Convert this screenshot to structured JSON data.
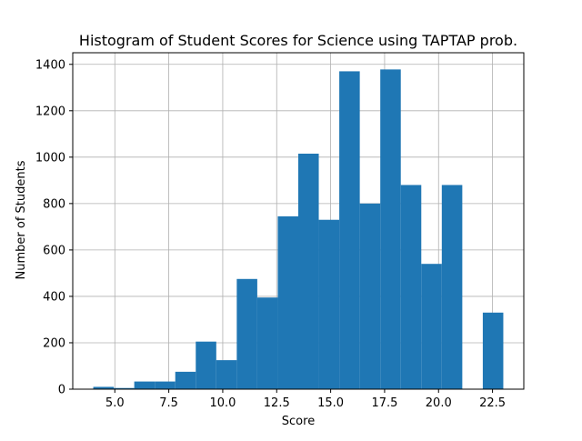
{
  "chart_data": {
    "type": "bar",
    "title": "Histogram of Student Scores for Science using TAPTAP prob.",
    "xlabel": "Score",
    "ylabel": "Number of Students",
    "xlim": [
      3.05,
      23.95
    ],
    "ylim": [
      0,
      1450
    ],
    "grid": true,
    "bar_color": "#1f77b4",
    "bin_edges": [
      4.0,
      4.95,
      5.9,
      6.85,
      7.8,
      8.75,
      9.7,
      10.65,
      11.6,
      12.55,
      13.5,
      14.45,
      15.4,
      16.35,
      17.3,
      18.25,
      19.2,
      20.15,
      21.1,
      22.05,
      23.0
    ],
    "counts": [
      10,
      5,
      33,
      33,
      75,
      205,
      125,
      475,
      395,
      745,
      1015,
      730,
      1370,
      800,
      1378,
      880,
      540,
      880,
      0,
      330
    ],
    "xticks": [
      5.0,
      7.5,
      10.0,
      12.5,
      15.0,
      17.5,
      20.0,
      22.5
    ],
    "xtick_labels": [
      "5.0",
      "7.5",
      "10.0",
      "12.5",
      "15.0",
      "17.5",
      "20.0",
      "22.5"
    ],
    "yticks": [
      0,
      200,
      400,
      600,
      800,
      1000,
      1200,
      1400
    ],
    "ytick_labels": [
      "0",
      "200",
      "400",
      "600",
      "800",
      "1000",
      "1200",
      "1400"
    ]
  }
}
